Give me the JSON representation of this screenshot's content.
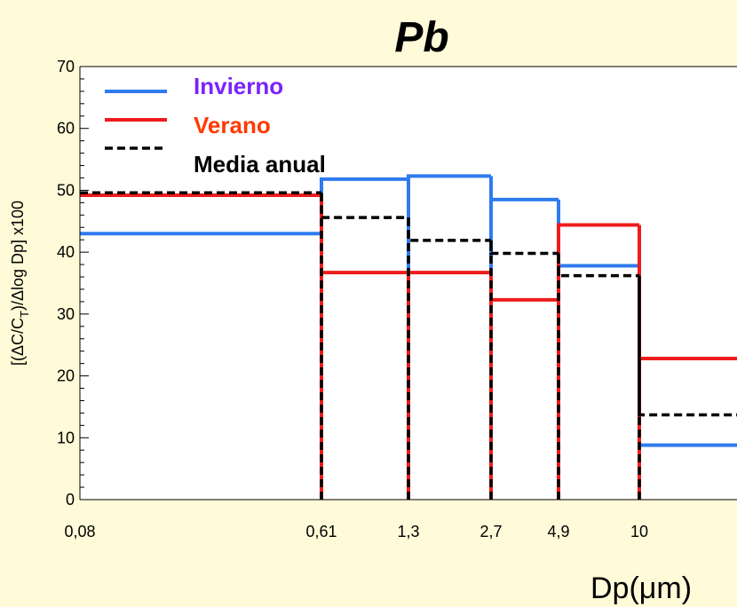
{
  "chart_data": {
    "type": "step",
    "title": "Pb",
    "xlabel": "Dp(μm)",
    "ylabel_parts": [
      "[(ΔC/C",
      "T",
      ")/Δlog Dp] x100"
    ],
    "ylim": [
      0,
      70
    ],
    "y_ticks": [
      0,
      10,
      20,
      30,
      40,
      50,
      60,
      70
    ],
    "x_bin_edges": [
      "0,08",
      "0,61",
      "1,3",
      "2,7",
      "4,9",
      "10"
    ],
    "x_ticks": [
      "0,08",
      "0,61",
      "1,3",
      "2,7",
      "4,9",
      "10"
    ],
    "grid": false,
    "legend_position": "top-left",
    "series": [
      {
        "name": "Invierno",
        "color": "#2f7bef",
        "dash": "solid",
        "values": [
          43,
          51.8,
          52.3,
          48.5,
          37.8,
          8.8
        ]
      },
      {
        "name": "Verano",
        "color": "#ee1c1c",
        "dash": "solid",
        "values": [
          49.2,
          36.7,
          36.7,
          32.3,
          44.4,
          22.8
        ]
      },
      {
        "name": "Media anual",
        "color": "#000000",
        "dash": "dashed",
        "values": [
          49.6,
          45.6,
          41.9,
          39.8,
          36.2,
          13.7
        ]
      }
    ],
    "legend_text_colors": {
      "Invierno": "#7b22ff",
      "Verano": "#ff3a00",
      "Media anual": "#000000"
    }
  }
}
